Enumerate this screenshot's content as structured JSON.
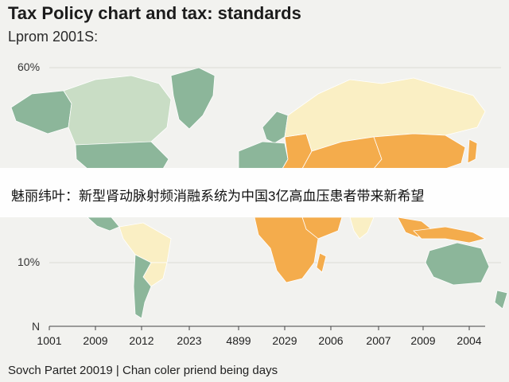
{
  "title": "Tax Policy chart and tax: standards",
  "subtitle": "Lprom 2001S:",
  "y_axis": {
    "top_label": "60%",
    "mid_label": "10%",
    "bottom_label": "N"
  },
  "x_axis": {
    "ticks": [
      "1001",
      "2009",
      "2012",
      "2023",
      "4899",
      "2029",
      "2006",
      "2007",
      "2009",
      "2004"
    ]
  },
  "banner": {
    "text": "魅丽纬叶：新型肾动脉射频消融系统为中国3亿高血压患者带来新希望"
  },
  "footer": "Sovch Partet 20019 | Chan coler priend being days",
  "colors": {
    "green": "#8cb69a",
    "light_green": "#c9ddc5",
    "cream": "#faefc4",
    "orange": "#f4ac4c",
    "background": "#f2f2ef"
  }
}
